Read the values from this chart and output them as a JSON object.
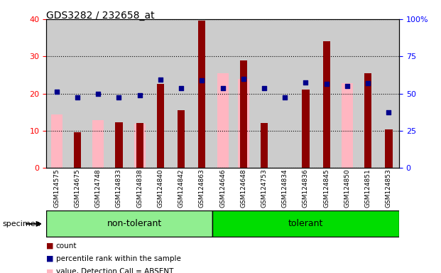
{
  "title": "GDS3282 / 232658_at",
  "samples": [
    "GSM124575",
    "GSM124675",
    "GSM124748",
    "GSM124833",
    "GSM124838",
    "GSM124840",
    "GSM124842",
    "GSM124863",
    "GSM124646",
    "GSM124648",
    "GSM124753",
    "GSM124834",
    "GSM124836",
    "GSM124845",
    "GSM124850",
    "GSM124851",
    "GSM124853"
  ],
  "non_tolerant_count": 8,
  "count": [
    null,
    9.5,
    null,
    12.3,
    12.0,
    22.5,
    15.5,
    39.5,
    null,
    28.8,
    12.0,
    null,
    21.0,
    34.0,
    null,
    25.5,
    10.3
  ],
  "percentile_rank": [
    20.5,
    19.0,
    20.0,
    19.0,
    19.5,
    23.8,
    21.5,
    23.5,
    21.5,
    24.0,
    21.5,
    19.0,
    23.0,
    22.5,
    22.0,
    22.8,
    15.0
  ],
  "value_absent": [
    14.3,
    null,
    12.8,
    null,
    11.8,
    null,
    null,
    null,
    25.5,
    24.0,
    null,
    null,
    null,
    null,
    22.8,
    null,
    null
  ],
  "rank_absent": [
    20.5,
    null,
    null,
    null,
    null,
    null,
    null,
    null,
    null,
    null,
    null,
    null,
    null,
    null,
    null,
    null,
    null
  ],
  "count_color": "#8B0000",
  "percentile_rank_color": "#00008B",
  "value_absent_color": "#FFB6C1",
  "rank_absent_color": "#B0C4DE",
  "ylim_left": [
    0,
    40
  ],
  "ylim_right": [
    0,
    100
  ],
  "yticks_left": [
    0,
    10,
    20,
    30,
    40
  ],
  "yticks_right": [
    0,
    25,
    50,
    75,
    100
  ],
  "ytick_right_labels": [
    "0",
    "25",
    "50",
    "75",
    "100%"
  ],
  "non_tolerant_color": "#90EE90",
  "tolerant_color": "#00DD00",
  "col_bg_color": "#CCCCCC",
  "plot_bg_color": "#FFFFFF"
}
